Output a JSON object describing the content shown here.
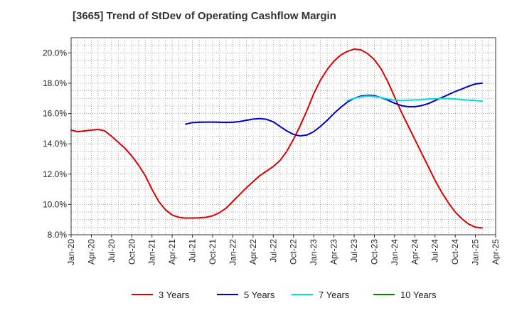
{
  "chart_data": {
    "type": "line",
    "title": "[3665]  Trend of StDev of Operating Cashflow Margin",
    "xlabel": "",
    "ylabel": "",
    "x_ticks": [
      "Jan-20",
      "Apr-20",
      "Jul-20",
      "Oct-20",
      "Jan-21",
      "Apr-21",
      "Jul-21",
      "Oct-21",
      "Jan-22",
      "Apr-22",
      "Jul-22",
      "Oct-22",
      "Jan-23",
      "Apr-23",
      "Jul-23",
      "Oct-23",
      "Jan-24",
      "Apr-24",
      "Jul-24",
      "Oct-24",
      "Jan-25",
      "Apr-25"
    ],
    "y_ticks": [
      "8.0%",
      "10.0%",
      "12.0%",
      "14.0%",
      "16.0%",
      "18.0%",
      "20.0%"
    ],
    "ylim": [
      8.0,
      21.0
    ],
    "grid": true,
    "legend_position": "bottom",
    "series": [
      {
        "name": "3 Years",
        "color": "#dd0000",
        "points": [
          [
            "Jan-20",
            14.9
          ],
          [
            "Feb-20",
            14.8
          ],
          [
            "Mar-20",
            14.85
          ],
          [
            "Apr-20",
            14.9
          ],
          [
            "May-20",
            14.95
          ],
          [
            "Jun-20",
            14.85
          ],
          [
            "Jul-20",
            14.5
          ],
          [
            "Aug-20",
            14.1
          ],
          [
            "Sep-20",
            13.7
          ],
          [
            "Oct-20",
            13.2
          ],
          [
            "Nov-20",
            12.6
          ],
          [
            "Dec-20",
            11.9
          ],
          [
            "Jan-21",
            11.0
          ],
          [
            "Feb-21",
            10.2
          ],
          [
            "Mar-21",
            9.65
          ],
          [
            "Apr-21",
            9.3
          ],
          [
            "May-21",
            9.15
          ],
          [
            "Jun-21",
            9.1
          ],
          [
            "Jul-21",
            9.1
          ],
          [
            "Aug-21",
            9.12
          ],
          [
            "Sep-21",
            9.15
          ],
          [
            "Oct-21",
            9.25
          ],
          [
            "Nov-21",
            9.45
          ],
          [
            "Dec-21",
            9.75
          ],
          [
            "Jan-22",
            10.2
          ],
          [
            "Feb-22",
            10.65
          ],
          [
            "Mar-22",
            11.1
          ],
          [
            "Apr-22",
            11.5
          ],
          [
            "May-22",
            11.9
          ],
          [
            "Jun-22",
            12.2
          ],
          [
            "Jul-22",
            12.5
          ],
          [
            "Aug-22",
            12.9
          ],
          [
            "Sep-22",
            13.5
          ],
          [
            "Oct-22",
            14.3
          ],
          [
            "Nov-22",
            15.2
          ],
          [
            "Dec-22",
            16.2
          ],
          [
            "Jan-23",
            17.3
          ],
          [
            "Feb-23",
            18.2
          ],
          [
            "Mar-23",
            18.9
          ],
          [
            "Apr-23",
            19.45
          ],
          [
            "May-23",
            19.85
          ],
          [
            "Jun-23",
            20.1
          ],
          [
            "Jul-23",
            20.25
          ],
          [
            "Aug-23",
            20.2
          ],
          [
            "Sep-23",
            19.95
          ],
          [
            "Oct-23",
            19.55
          ],
          [
            "Nov-23",
            18.95
          ],
          [
            "Dec-23",
            18.1
          ],
          [
            "Jan-24",
            17.1
          ],
          [
            "Feb-24",
            16.1
          ],
          [
            "Mar-24",
            15.2
          ],
          [
            "Apr-24",
            14.3
          ],
          [
            "May-24",
            13.4
          ],
          [
            "Jun-24",
            12.5
          ],
          [
            "Jul-24",
            11.6
          ],
          [
            "Aug-24",
            10.8
          ],
          [
            "Sep-24",
            10.1
          ],
          [
            "Oct-24",
            9.5
          ],
          [
            "Nov-24",
            9.05
          ],
          [
            "Dec-24",
            8.7
          ],
          [
            "Jan-25",
            8.5
          ],
          [
            "Feb-25",
            8.45
          ]
        ]
      },
      {
        "name": "5 Years",
        "color": "#0000cc",
        "points": [
          [
            "Jun-21",
            15.3
          ],
          [
            "Jul-21",
            15.4
          ],
          [
            "Aug-21",
            15.42
          ],
          [
            "Sep-21",
            15.43
          ],
          [
            "Oct-21",
            15.43
          ],
          [
            "Nov-21",
            15.42
          ],
          [
            "Dec-21",
            15.41
          ],
          [
            "Jan-22",
            15.42
          ],
          [
            "Feb-22",
            15.47
          ],
          [
            "Mar-22",
            15.55
          ],
          [
            "Apr-22",
            15.63
          ],
          [
            "May-22",
            15.66
          ],
          [
            "Jun-22",
            15.62
          ],
          [
            "Jul-22",
            15.45
          ],
          [
            "Aug-22",
            15.15
          ],
          [
            "Sep-22",
            14.85
          ],
          [
            "Oct-22",
            14.62
          ],
          [
            "Nov-22",
            14.52
          ],
          [
            "Dec-22",
            14.58
          ],
          [
            "Jan-23",
            14.8
          ],
          [
            "Feb-23",
            15.15
          ],
          [
            "Mar-23",
            15.55
          ],
          [
            "Apr-23",
            16.0
          ],
          [
            "May-23",
            16.4
          ],
          [
            "Jun-23",
            16.75
          ],
          [
            "Jul-23",
            17.0
          ],
          [
            "Aug-23",
            17.15
          ],
          [
            "Sep-23",
            17.2
          ],
          [
            "Oct-23",
            17.18
          ],
          [
            "Nov-23",
            17.05
          ],
          [
            "Dec-23",
            16.88
          ],
          [
            "Jan-24",
            16.68
          ],
          [
            "Feb-24",
            16.52
          ],
          [
            "Mar-24",
            16.45
          ],
          [
            "Apr-24",
            16.45
          ],
          [
            "May-24",
            16.52
          ],
          [
            "Jun-24",
            16.65
          ],
          [
            "Jul-24",
            16.85
          ],
          [
            "Aug-24",
            17.05
          ],
          [
            "Sep-24",
            17.25
          ],
          [
            "Oct-24",
            17.45
          ],
          [
            "Nov-24",
            17.62
          ],
          [
            "Dec-24",
            17.8
          ],
          [
            "Jan-25",
            17.95
          ],
          [
            "Feb-25",
            18.0
          ]
        ]
      },
      {
        "name": "7 Years",
        "color": "#00dddd",
        "points": [
          [
            "Jun-23",
            16.85
          ],
          [
            "Jul-23",
            17.0
          ],
          [
            "Aug-23",
            17.1
          ],
          [
            "Sep-23",
            17.15
          ],
          [
            "Oct-23",
            17.12
          ],
          [
            "Nov-23",
            17.05
          ],
          [
            "Dec-23",
            16.95
          ],
          [
            "Jan-24",
            16.88
          ],
          [
            "Feb-24",
            16.85
          ],
          [
            "Mar-24",
            16.87
          ],
          [
            "Apr-24",
            16.9
          ],
          [
            "May-24",
            16.92
          ],
          [
            "Jun-24",
            16.95
          ],
          [
            "Jul-24",
            16.97
          ],
          [
            "Aug-24",
            16.98
          ],
          [
            "Sep-24",
            16.98
          ],
          [
            "Oct-24",
            16.95
          ],
          [
            "Nov-24",
            16.92
          ],
          [
            "Dec-24",
            16.88
          ],
          [
            "Jan-25",
            16.85
          ],
          [
            "Feb-25",
            16.82
          ]
        ]
      },
      {
        "name": "10 Years",
        "color": "#008800",
        "points": []
      }
    ]
  }
}
